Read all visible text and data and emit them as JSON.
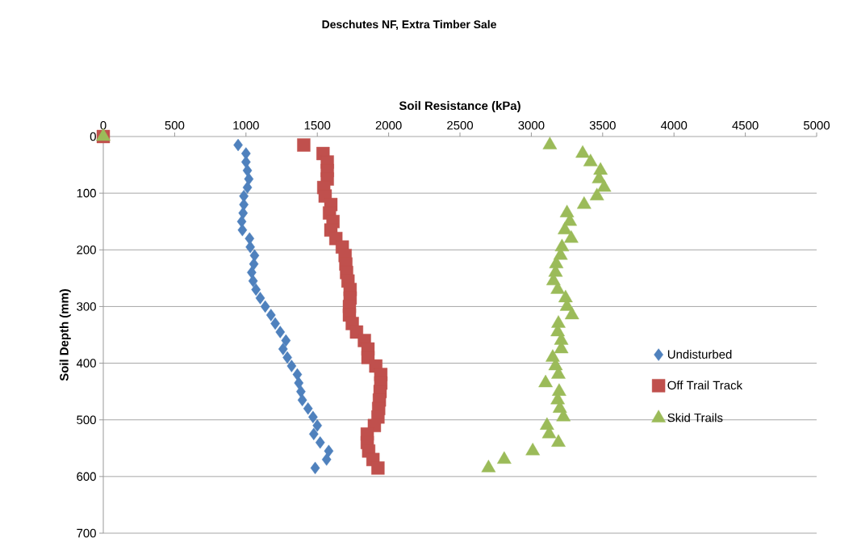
{
  "chart_data": {
    "type": "scatter",
    "title": "Deschutes NF, Extra Timber Sale",
    "xlabel": "Soil Resistance (kPa)",
    "ylabel": "Soil Depth (mm)",
    "xlim": [
      0,
      5000
    ],
    "xticks": [
      0,
      500,
      1000,
      1500,
      2000,
      2500,
      3000,
      3500,
      4000,
      4500,
      5000
    ],
    "ylim": [
      700,
      0
    ],
    "yticks": [
      0,
      100,
      200,
      300,
      400,
      500,
      600,
      700
    ],
    "grid": "y",
    "legend": "right",
    "series": [
      {
        "name": "Undisturbed",
        "color": "#4f81bd",
        "marker": "diamond",
        "x": [
          null,
          945,
          1000,
          1000,
          1010,
          1020,
          1010,
          985,
          985,
          980,
          970,
          975,
          1025,
          1030,
          1060,
          1055,
          1040,
          1050,
          1070,
          1100,
          1135,
          1175,
          1205,
          1240,
          1280,
          1260,
          1290,
          1320,
          1360,
          1370,
          1385,
          1395,
          1435,
          1470,
          1500,
          1475,
          1520,
          1580,
          1565,
          1485
        ],
        "values": [
          null,
          15,
          30,
          45,
          60,
          75,
          90,
          105,
          120,
          135,
          150,
          165,
          180,
          195,
          210,
          225,
          240,
          255,
          270,
          285,
          300,
          315,
          330,
          345,
          360,
          375,
          390,
          405,
          420,
          435,
          450,
          465,
          480,
          495,
          510,
          525,
          540,
          555,
          570,
          585
        ]
      },
      {
        "name": "Off Trail Track",
        "color": "#c0504d",
        "marker": "square",
        "x": [
          0,
          1405,
          1540,
          1570,
          1570,
          1570,
          1545,
          1555,
          1595,
          1585,
          1610,
          1595,
          1630,
          1675,
          1695,
          1700,
          1705,
          1715,
          1730,
          1730,
          1725,
          1725,
          1745,
          1775,
          1830,
          1855,
          1855,
          1910,
          1945,
          1945,
          1940,
          1935,
          1930,
          1925,
          1900,
          1850,
          1850,
          1860,
          1890,
          1925
        ],
        "values": [
          0,
          15,
          30,
          45,
          60,
          75,
          90,
          105,
          120,
          135,
          150,
          165,
          180,
          195,
          210,
          225,
          240,
          255,
          270,
          285,
          300,
          315,
          330,
          345,
          360,
          375,
          390,
          405,
          420,
          435,
          450,
          465,
          480,
          495,
          510,
          525,
          540,
          555,
          570,
          585
        ]
      },
      {
        "name": "Skid Trails",
        "color": "#9bbb59",
        "marker": "triangle",
        "x": [
          0,
          3130,
          3360,
          3415,
          3485,
          3475,
          3510,
          3460,
          3370,
          3250,
          3270,
          3235,
          3280,
          3215,
          3205,
          3175,
          3170,
          3155,
          3185,
          3240,
          3250,
          3285,
          3190,
          3185,
          3210,
          3210,
          3150,
          3170,
          3190,
          3100,
          3195,
          3185,
          3200,
          3225,
          3110,
          3125,
          3190,
          3010,
          2810,
          2700
        ],
        "values": [
          0,
          15,
          30,
          45,
          60,
          75,
          90,
          105,
          120,
          135,
          150,
          165,
          180,
          195,
          210,
          225,
          240,
          255,
          270,
          285,
          300,
          315,
          330,
          345,
          360,
          375,
          390,
          405,
          420,
          435,
          450,
          465,
          480,
          495,
          510,
          525,
          540,
          555,
          570,
          585
        ]
      }
    ]
  }
}
